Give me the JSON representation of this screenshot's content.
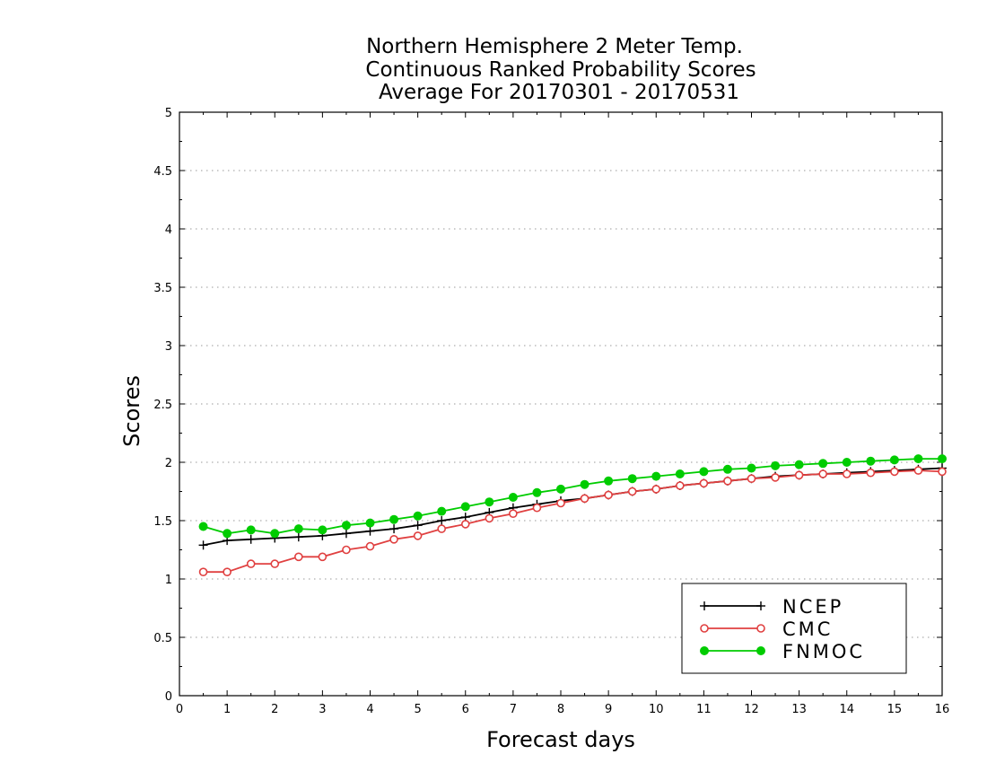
{
  "chart_data": {
    "type": "line",
    "title_lines": [
      "Northern Hemisphere 2 Meter Temp.",
      "Continuous Ranked Probability Scores",
      "Average For 20170301 - 20170531"
    ],
    "xlabel": "Forecast days",
    "ylabel": "Scores",
    "xlim": [
      0,
      16
    ],
    "ylim": [
      0,
      5
    ],
    "x_ticks": [
      "0",
      "1",
      "2",
      "3",
      "4",
      "5",
      "6",
      "7",
      "8",
      "9",
      "10",
      "11",
      "12",
      "13",
      "14",
      "15",
      "16"
    ],
    "y_ticks": [
      "0",
      "0.5",
      "1",
      "1.5",
      "2",
      "2.5",
      "3",
      "3.5",
      "4",
      "4.5",
      "5"
    ],
    "grid": "horizontal-dotted",
    "legend_position": "bottom-right",
    "x": [
      0.5,
      1,
      1.5,
      2,
      2.5,
      3,
      3.5,
      4,
      4.5,
      5,
      5.5,
      6,
      6.5,
      7,
      7.5,
      8,
      8.5,
      9,
      9.5,
      10,
      10.5,
      11,
      11.5,
      12,
      12.5,
      13,
      13.5,
      14,
      14.5,
      15,
      15.5,
      16
    ],
    "series": [
      {
        "name": "NCEP",
        "color": "#000000",
        "marker": "plus",
        "values": [
          1.29,
          1.33,
          1.34,
          1.35,
          1.36,
          1.37,
          1.39,
          1.41,
          1.43,
          1.46,
          1.5,
          1.53,
          1.57,
          1.61,
          1.64,
          1.67,
          1.69,
          1.72,
          1.75,
          1.77,
          1.8,
          1.82,
          1.84,
          1.86,
          1.88,
          1.89,
          1.9,
          1.91,
          1.92,
          1.93,
          1.94,
          1.95
        ]
      },
      {
        "name": "CMC",
        "color": "#e04040",
        "marker": "open-circle",
        "values": [
          1.06,
          1.06,
          1.13,
          1.13,
          1.19,
          1.19,
          1.25,
          1.28,
          1.34,
          1.37,
          1.43,
          1.47,
          1.52,
          1.56,
          1.61,
          1.65,
          1.69,
          1.72,
          1.75,
          1.77,
          1.8,
          1.82,
          1.84,
          1.86,
          1.87,
          1.89,
          1.9,
          1.9,
          1.91,
          1.92,
          1.93,
          1.92
        ]
      },
      {
        "name": "FNMOC",
        "color": "#00cc00",
        "marker": "filled-circle",
        "values": [
          1.45,
          1.39,
          1.42,
          1.39,
          1.43,
          1.42,
          1.46,
          1.48,
          1.51,
          1.54,
          1.58,
          1.62,
          1.66,
          1.7,
          1.74,
          1.77,
          1.81,
          1.84,
          1.86,
          1.88,
          1.9,
          1.92,
          1.94,
          1.95,
          1.97,
          1.98,
          1.99,
          2.0,
          2.01,
          2.02,
          2.03,
          2.03
        ]
      }
    ]
  }
}
